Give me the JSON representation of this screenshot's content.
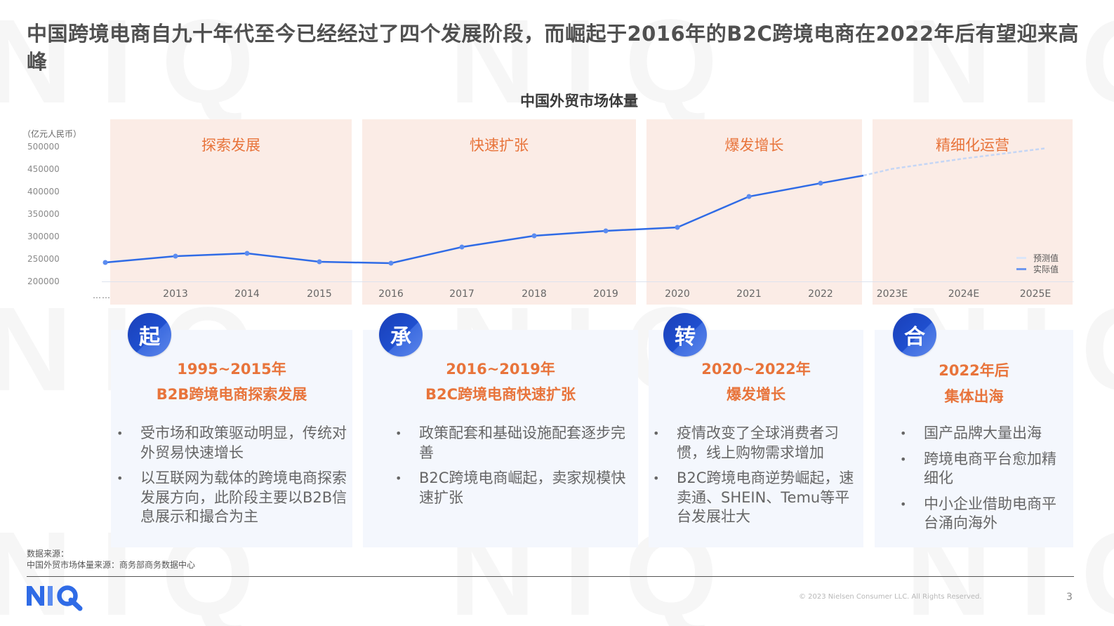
{
  "page": {
    "title": "中国跨境电商自九十年代至今已经经过了四个发展阶段，而崛起于2016年的B2C跨境电商在2022年后有望迎来高峰",
    "watermark_text": "NIQ"
  },
  "chart": {
    "title": "中国外贸市场体量",
    "y_unit": "（亿元人民币）",
    "y_ticks": [
      "500000",
      "450000",
      "400000",
      "350000",
      "300000",
      "250000",
      "200000"
    ],
    "x_leading_label": "……",
    "x_ticks": [
      "2013",
      "2014",
      "2015",
      "2016",
      "2017",
      "2018",
      "2019",
      "2020",
      "2021",
      "2022",
      "2023E",
      "2024E",
      "2025E"
    ],
    "phases": [
      {
        "label": "探索发展"
      },
      {
        "label": "快速扩张"
      },
      {
        "label": "爆发增长"
      },
      {
        "label": "精细化运营"
      }
    ],
    "legend": {
      "forecast": "预测值",
      "actual": "实际值"
    },
    "colors": {
      "actual_line": "#2f6be6",
      "forecast_line": "#c5d6f5",
      "phase_band": "#fbece6",
      "phase_label": "#e8743b"
    }
  },
  "chart_data": {
    "type": "line",
    "title": "中国外贸市场体量",
    "xlabel": "",
    "ylabel": "亿元人民币",
    "ylim": [
      200000,
      500000
    ],
    "y_ticks": [
      200000,
      250000,
      300000,
      350000,
      400000,
      450000,
      500000
    ],
    "categories": [
      "……",
      "2013",
      "2014",
      "2015",
      "2016",
      "2017",
      "2018",
      "2019",
      "2020",
      "2021",
      "2022",
      "2023E",
      "2024E",
      "2025E"
    ],
    "series": [
      {
        "name": "实际值",
        "style": "solid",
        "values": [
          242400,
          256500,
          262800,
          244000,
          240800,
          277000,
          302100,
          313100,
          321000,
          390000,
          419800,
          null,
          null,
          null
        ]
      },
      {
        "name": "预测值",
        "style": "dashed",
        "values": [
          null,
          null,
          null,
          null,
          null,
          null,
          null,
          null,
          null,
          null,
          419800,
          452000,
          475000,
          498000
        ]
      }
    ],
    "phase_annotations": [
      {
        "label": "探索发展",
        "range": [
          "……",
          "2015"
        ]
      },
      {
        "label": "快速扩张",
        "range": [
          "2016",
          "2019"
        ]
      },
      {
        "label": "爆发增长",
        "range": [
          "2020",
          "2022"
        ]
      },
      {
        "label": "精细化运营",
        "range": [
          "2023E",
          "2025E"
        ]
      }
    ],
    "legend_position": "bottom-right",
    "grid": false
  },
  "cards": [
    {
      "badge": "起",
      "period": "1995~2015年",
      "heading": "B2B跨境电商探索发展",
      "bullets": [
        "受市场和政策驱动明显，传统对外贸易快速增长",
        "以互联网为载体的跨境电商探索发展方向，此阶段主要以B2B信息展示和撮合为主"
      ]
    },
    {
      "badge": "承",
      "period": "2016~2019年",
      "heading": "B2C跨境电商快速扩张",
      "bullets": [
        "政策配套和基础设施配套逐步完善",
        "B2C跨境电商崛起，卖家规模快速扩张"
      ]
    },
    {
      "badge": "转",
      "period": "2020~2022年",
      "heading": "爆发增长",
      "bullets": [
        "疫情改变了全球消费者习惯，线上购物需求增加",
        "B2C跨境电商逆势崛起，速卖通、SHEIN、Temu等平台发展壮大"
      ]
    },
    {
      "badge": "合",
      "period": "2022年后",
      "heading": "集体出海",
      "bullets": [
        "国产品牌大量出海",
        "跨境电商平台愈加精细化",
        "中小企业借助电商平台涌向海外"
      ]
    }
  ],
  "footer": {
    "source_label": "数据来源：",
    "source_text": "中国外贸市场体量来源：商务部商务数据中心",
    "logo_text": "NIQ",
    "copyright": "© 2023 Nielsen Consumer LLC. All Rights Reserved.",
    "page_number": "3"
  }
}
